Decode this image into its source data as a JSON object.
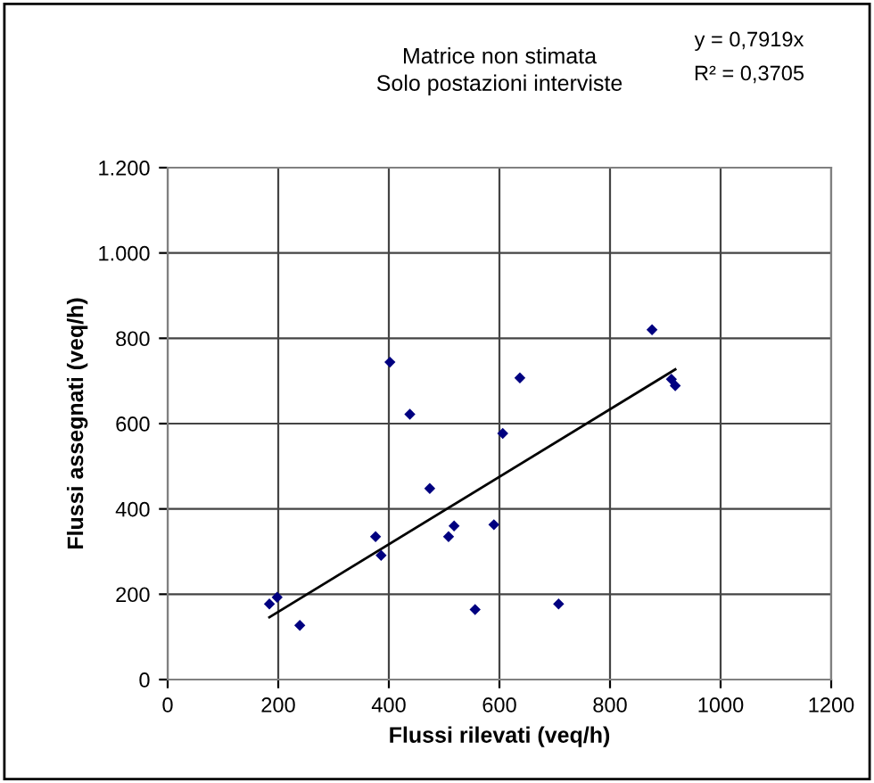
{
  "chart_data": {
    "type": "scatter",
    "title": "Matrice non stimata\nSolo postazioni interviste",
    "xlabel": "Flussi rilevati (veq/h)",
    "ylabel": "Flussi assegnati (veq/h)",
    "annotations": [
      "y = 0,7919x",
      "R² = 0,3705"
    ],
    "series": [
      {
        "color": "#000080",
        "marker": "diamond",
        "x": [
          184,
          198,
          239,
          376,
          386,
          402,
          438,
          474,
          508,
          518,
          556,
          590,
          606,
          637,
          707,
          876,
          911,
          918
        ],
        "values": [
          177,
          193,
          127,
          335,
          291,
          744,
          622,
          448,
          335,
          360,
          164,
          363,
          577,
          707,
          177,
          820,
          704,
          689
        ]
      },
      {
        "type": "line",
        "color": "#000000",
        "marker": "none",
        "x": [
          184,
          918
        ],
        "values": [
          146,
          727
        ]
      }
    ],
    "xlim": [
      0,
      1200
    ],
    "xticks": [
      0,
      200,
      400,
      600,
      800,
      1000,
      1200
    ],
    "ylim": [
      0,
      1200
    ],
    "yticks": [
      0,
      200,
      400,
      600,
      800,
      {
        "value": 1000,
        "label": "1.000"
      },
      {
        "value": 1200,
        "label": "1.200"
      }
    ],
    "grid": true,
    "legend": false
  }
}
